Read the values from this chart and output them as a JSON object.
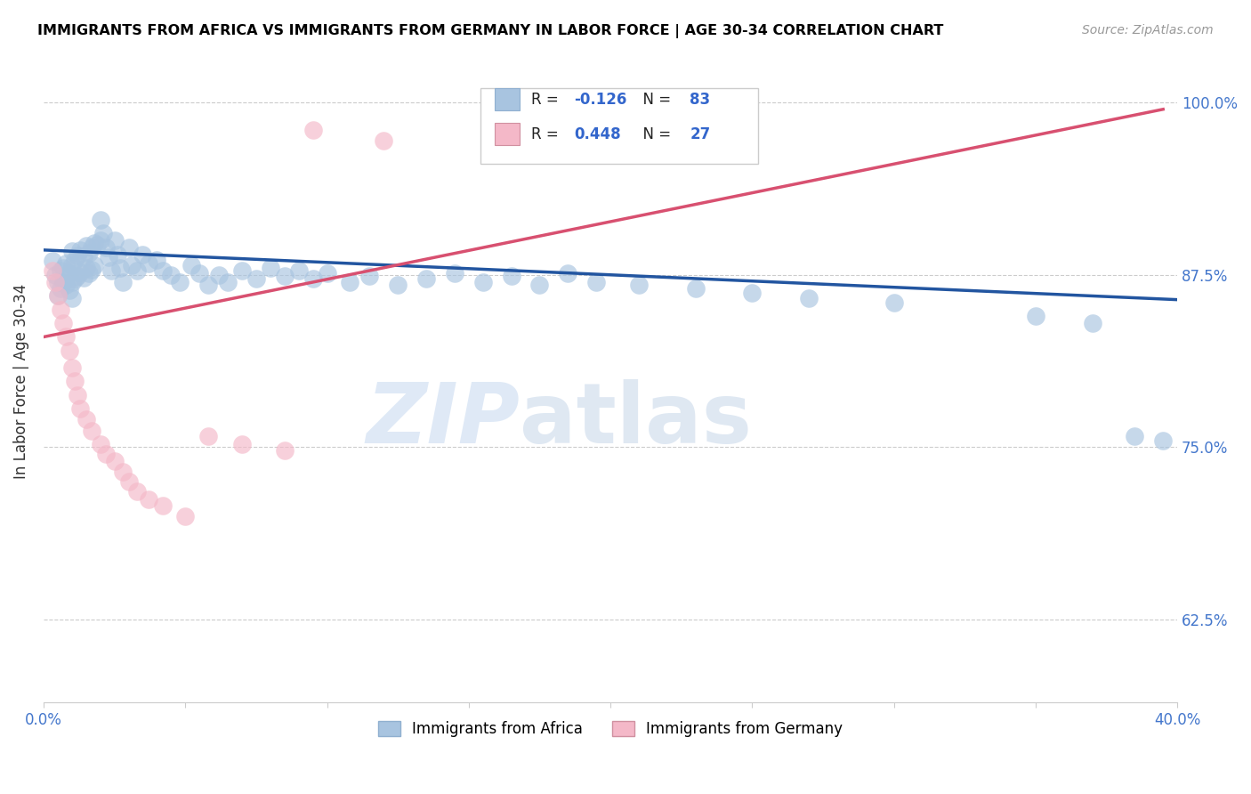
{
  "title": "IMMIGRANTS FROM AFRICA VS IMMIGRANTS FROM GERMANY IN LABOR FORCE | AGE 30-34 CORRELATION CHART",
  "source": "Source: ZipAtlas.com",
  "ylabel_label": "In Labor Force | Age 30-34",
  "legend_label1": "Immigrants from Africa",
  "legend_label2": "Immigrants from Germany",
  "r_africa": "-0.126",
  "n_africa": "83",
  "r_germany": "0.448",
  "n_germany": "27",
  "xlim": [
    0.0,
    0.4
  ],
  "ylim": [
    0.565,
    1.03
  ],
  "yticks": [
    0.625,
    0.75,
    0.875,
    1.0
  ],
  "ytick_labels": [
    "62.5%",
    "75.0%",
    "87.5%",
    "100.0%"
  ],
  "color_africa": "#a8c4e0",
  "color_germany": "#f4b8c8",
  "color_line_africa": "#2255a0",
  "color_line_germany": "#d85070",
  "watermark_zip": "ZIP",
  "watermark_atlas": "atlas",
  "africa_scatter_x": [
    0.003,
    0.004,
    0.005,
    0.005,
    0.006,
    0.006,
    0.007,
    0.007,
    0.008,
    0.008,
    0.009,
    0.009,
    0.01,
    0.01,
    0.01,
    0.01,
    0.011,
    0.011,
    0.012,
    0.012,
    0.013,
    0.013,
    0.014,
    0.014,
    0.015,
    0.015,
    0.016,
    0.016,
    0.017,
    0.017,
    0.018,
    0.018,
    0.019,
    0.02,
    0.02,
    0.021,
    0.022,
    0.023,
    0.024,
    0.025,
    0.026,
    0.027,
    0.028,
    0.03,
    0.031,
    0.033,
    0.035,
    0.037,
    0.04,
    0.042,
    0.045,
    0.048,
    0.052,
    0.055,
    0.058,
    0.062,
    0.065,
    0.07,
    0.075,
    0.08,
    0.085,
    0.09,
    0.095,
    0.1,
    0.108,
    0.115,
    0.125,
    0.135,
    0.145,
    0.155,
    0.165,
    0.175,
    0.185,
    0.195,
    0.21,
    0.23,
    0.25,
    0.27,
    0.3,
    0.35,
    0.37,
    0.385,
    0.395
  ],
  "africa_scatter_y": [
    0.885,
    0.875,
    0.87,
    0.86,
    0.878,
    0.865,
    0.88,
    0.87,
    0.883,
    0.868,
    0.876,
    0.864,
    0.892,
    0.882,
    0.87,
    0.858,
    0.886,
    0.872,
    0.889,
    0.874,
    0.893,
    0.877,
    0.888,
    0.873,
    0.896,
    0.88,
    0.891,
    0.876,
    0.895,
    0.879,
    0.898,
    0.882,
    0.897,
    0.915,
    0.9,
    0.905,
    0.895,
    0.888,
    0.878,
    0.9,
    0.89,
    0.88,
    0.87,
    0.895,
    0.882,
    0.878,
    0.89,
    0.883,
    0.886,
    0.878,
    0.875,
    0.87,
    0.882,
    0.876,
    0.868,
    0.875,
    0.87,
    0.878,
    0.872,
    0.88,
    0.874,
    0.878,
    0.872,
    0.876,
    0.87,
    0.874,
    0.868,
    0.872,
    0.876,
    0.87,
    0.874,
    0.868,
    0.876,
    0.87,
    0.868,
    0.865,
    0.862,
    0.858,
    0.855,
    0.845,
    0.84,
    0.758,
    0.755
  ],
  "germany_scatter_x": [
    0.003,
    0.004,
    0.005,
    0.006,
    0.007,
    0.008,
    0.009,
    0.01,
    0.011,
    0.012,
    0.013,
    0.015,
    0.017,
    0.02,
    0.022,
    0.025,
    0.028,
    0.03,
    0.033,
    0.037,
    0.042,
    0.05,
    0.058,
    0.07,
    0.085,
    0.095,
    0.12
  ],
  "germany_scatter_y": [
    0.878,
    0.87,
    0.86,
    0.85,
    0.84,
    0.83,
    0.82,
    0.808,
    0.798,
    0.788,
    0.778,
    0.77,
    0.762,
    0.752,
    0.745,
    0.74,
    0.732,
    0.725,
    0.718,
    0.712,
    0.708,
    0.7,
    0.758,
    0.752,
    0.748,
    0.98,
    0.972
  ],
  "africa_line_x": [
    0.0,
    0.4
  ],
  "africa_line_y": [
    0.893,
    0.857
  ],
  "germany_line_x": [
    0.0,
    0.395
  ],
  "germany_line_y": [
    0.83,
    0.995
  ]
}
